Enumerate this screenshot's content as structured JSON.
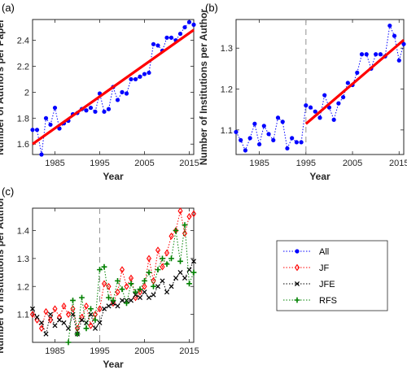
{
  "chart_data": [
    {
      "panel": "(a)",
      "type": "line",
      "xlabel": "Year",
      "ylabel": "Number of Authors per Paper",
      "xlim": [
        1980,
        2016
      ],
      "ylim": [
        1.52,
        2.56
      ],
      "xticks": [
        1985,
        1995,
        2005,
        2015
      ],
      "yticks": [
        1.6,
        1.8,
        2,
        2.2,
        2.4
      ],
      "ytick_labels": [
        "1.6",
        "1.8",
        "2",
        "2.2",
        "2.4"
      ],
      "series": [
        {
          "style": "dotted-markers",
          "color": "#0000ff",
          "x": [
            1980,
            1981,
            1982,
            1983,
            1984,
            1985,
            1986,
            1987,
            1988,
            1989,
            1990,
            1991,
            1992,
            1993,
            1994,
            1995,
            1996,
            1997,
            1998,
            1999,
            2000,
            2001,
            2002,
            2003,
            2004,
            2005,
            2006,
            2007,
            2008,
            2009,
            2010,
            2011,
            2012,
            2013,
            2014,
            2015,
            2016
          ],
          "y": [
            1.71,
            1.71,
            1.52,
            1.8,
            1.75,
            1.88,
            1.72,
            1.76,
            1.78,
            1.83,
            1.84,
            1.87,
            1.86,
            1.88,
            1.85,
            1.99,
            1.85,
            1.87,
            2.04,
            1.94,
            2.0,
            1.99,
            2.1,
            2.1,
            2.12,
            2.14,
            2.15,
            2.37,
            2.36,
            2.32,
            2.42,
            2.42,
            2.4,
            2.45,
            2.5,
            2.54,
            2.52
          ]
        },
        {
          "style": "fit-line",
          "color": "#ff0000",
          "x": [
            1980,
            2016
          ],
          "y": [
            1.6,
            2.48
          ]
        }
      ]
    },
    {
      "panel": "(b)",
      "type": "line",
      "xlabel": "Year",
      "ylabel": "Number of Institutions per Author",
      "xlim": [
        1980,
        2016
      ],
      "ylim": [
        1.04,
        1.37
      ],
      "xticks": [
        1985,
        1995,
        2005,
        2015
      ],
      "yticks": [
        1.1,
        1.2,
        1.3
      ],
      "ytick_labels": [
        "1.1",
        "1.2",
        "1.3"
      ],
      "vline": 1995,
      "series": [
        {
          "style": "dotted-markers",
          "color": "#0000ff",
          "x": [
            1980,
            1981,
            1982,
            1983,
            1984,
            1985,
            1986,
            1987,
            1988,
            1989,
            1990,
            1991,
            1992,
            1993,
            1994,
            1995,
            1996,
            1997,
            1998,
            1999,
            2000,
            2001,
            2002,
            2003,
            2004,
            2005,
            2006,
            2007,
            2008,
            2009,
            2010,
            2011,
            2012,
            2013,
            2014,
            2015,
            2016
          ],
          "y": [
            1.095,
            1.075,
            1.05,
            1.08,
            1.115,
            1.065,
            1.11,
            1.09,
            1.075,
            1.13,
            1.12,
            1.055,
            1.08,
            1.07,
            1.07,
            1.16,
            1.155,
            1.145,
            1.13,
            1.185,
            1.155,
            1.125,
            1.165,
            1.18,
            1.215,
            1.21,
            1.24,
            1.285,
            1.285,
            1.25,
            1.285,
            1.285,
            1.28,
            1.355,
            1.33,
            1.27,
            1.31
          ]
        },
        {
          "style": "fit-line",
          "color": "#ff0000",
          "x": [
            1995,
            2016
          ],
          "y": [
            1.115,
            1.32
          ]
        }
      ]
    },
    {
      "panel": "(c)",
      "type": "line",
      "xlabel": "Year",
      "ylabel": "Number of Institutions per Author",
      "xlim": [
        1980,
        2016
      ],
      "ylim": [
        1.0,
        1.48
      ],
      "xticks": [
        1985,
        1995,
        2005,
        2015
      ],
      "yticks": [
        1.1,
        1.2,
        1.3,
        1.4
      ],
      "ytick_labels": [
        "1.1",
        "1.2",
        "1.3",
        "1.4"
      ],
      "vline": 1995,
      "legend": {
        "placement": "outside-right",
        "entries": [
          {
            "label": "All",
            "color": "#0000ff",
            "marker": "dot"
          },
          {
            "label": "JF",
            "color": "#ff0000",
            "marker": "diamond"
          },
          {
            "label": "JFE",
            "color": "#000000",
            "marker": "x"
          },
          {
            "label": "RFS",
            "color": "#008000",
            "marker": "plus"
          }
        ]
      },
      "series": [
        {
          "name": "JF",
          "color": "#ff0000",
          "marker": "diamond",
          "x": [
            1980,
            1981,
            1982,
            1983,
            1984,
            1985,
            1986,
            1987,
            1988,
            1989,
            1990,
            1991,
            1992,
            1993,
            1994,
            1995,
            1996,
            1997,
            1998,
            1999,
            2000,
            2001,
            2002,
            2003,
            2004,
            2005,
            2006,
            2007,
            2008,
            2009,
            2010,
            2011,
            2012,
            2013,
            2014,
            2015,
            2016
          ],
          "y": [
            1.1,
            1.08,
            1.05,
            1.11,
            1.08,
            1.12,
            1.09,
            1.13,
            1.1,
            1.12,
            1.05,
            1.09,
            1.13,
            1.06,
            1.1,
            1.12,
            1.21,
            1.2,
            1.14,
            1.18,
            1.26,
            1.2,
            1.23,
            1.16,
            1.18,
            1.2,
            1.3,
            1.22,
            1.33,
            1.27,
            1.32,
            1.38,
            1.4,
            1.47,
            1.39,
            1.45,
            1.46
          ]
        },
        {
          "name": "JFE",
          "color": "#000000",
          "marker": "x",
          "x": [
            1980,
            1981,
            1982,
            1983,
            1984,
            1985,
            1986,
            1987,
            1988,
            1989,
            1990,
            1991,
            1992,
            1993,
            1994,
            1995,
            1996,
            1997,
            1998,
            1999,
            2000,
            2001,
            2002,
            2003,
            2004,
            2005,
            2006,
            2007,
            2008,
            2009,
            2010,
            2011,
            2012,
            2013,
            2014,
            2015,
            2016
          ],
          "y": [
            1.12,
            1.09,
            1.07,
            1.03,
            1.1,
            1.06,
            1.08,
            1.07,
            1.05,
            1.1,
            1.03,
            1.08,
            1.07,
            1.1,
            1.05,
            1.07,
            1.12,
            1.13,
            1.14,
            1.13,
            1.15,
            1.15,
            1.15,
            1.17,
            1.16,
            1.18,
            1.16,
            1.17,
            1.2,
            1.22,
            1.18,
            1.2,
            1.23,
            1.25,
            1.23,
            1.26,
            1.29
          ]
        },
        {
          "name": "RFS",
          "color": "#008000",
          "marker": "plus",
          "x": [
            1988,
            1989,
            1990,
            1991,
            1992,
            1993,
            1994,
            1995,
            1996,
            1997,
            1998,
            1999,
            2000,
            2001,
            2002,
            2003,
            2004,
            2005,
            2006,
            2007,
            2008,
            2009,
            2010,
            2011,
            2012,
            2013,
            2014,
            2015,
            2016
          ],
          "y": [
            1.0,
            1.15,
            1.03,
            1.16,
            1.05,
            1.12,
            1.08,
            1.26,
            1.27,
            1.16,
            1.15,
            1.22,
            1.19,
            1.14,
            1.21,
            1.18,
            1.19,
            1.22,
            1.25,
            1.2,
            1.26,
            1.3,
            1.28,
            1.3,
            1.4,
            1.29,
            1.42,
            1.21,
            1.25
          ]
        }
      ]
    }
  ]
}
